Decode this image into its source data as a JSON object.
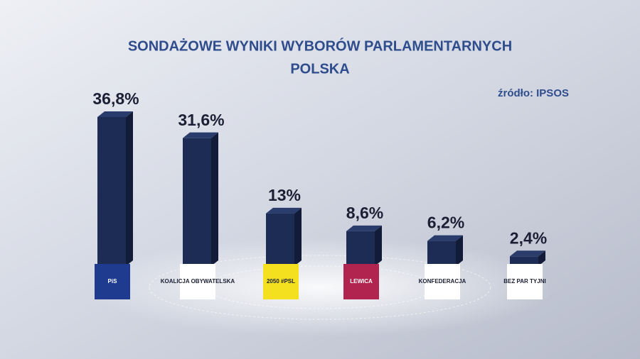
{
  "chart_data": {
    "type": "bar",
    "title": "SONDAŻOWE WYNIKI WYBORÓW PARLAMENTARNYCH",
    "subtitle": "POLSKA",
    "source": "źródło: IPSOS",
    "categories": [
      "PiS",
      "KOALICJA OBYWATELSKA",
      "2050 #PSL",
      "LEWICA",
      "KONFEDERACJA",
      "BEZ PAR TYJNI"
    ],
    "values": [
      36.8,
      31.6,
      13,
      8.6,
      6.2,
      2.4
    ],
    "value_labels": [
      "36,8%",
      "31,6%",
      "13%",
      "8,6%",
      "6,2%",
      "2,4%"
    ],
    "color": "#1d2c55",
    "logo_colors": [
      "#1f3b8f",
      "#ffffff",
      "#f5e020",
      "#b0244f",
      "#ffffff",
      "#ffffff"
    ]
  }
}
